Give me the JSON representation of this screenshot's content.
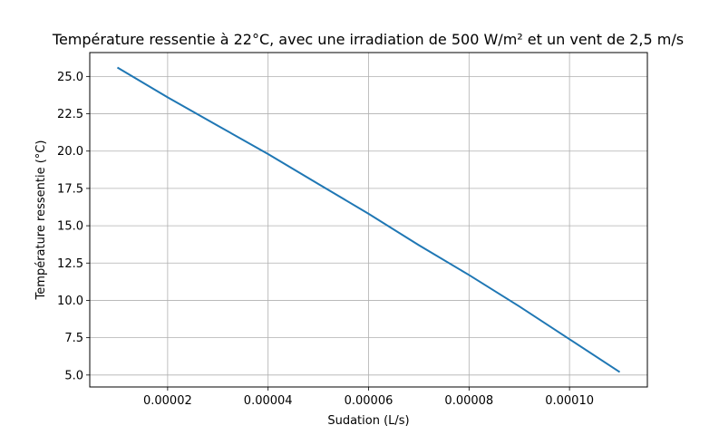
{
  "chart_data": {
    "type": "line",
    "title": "Température ressentie à 22°C, avec une irradiation de 500 W/m² et un vent de 2,5 m/s",
    "xlabel": "Sudation (L/s)",
    "ylabel": "Température ressentie (°C)",
    "xlim": [
      4.5e-06,
      0.0001155
    ],
    "ylim": [
      4.2,
      26.6
    ],
    "grid": true,
    "x_ticks": [
      2e-05,
      4e-05,
      6e-05,
      8e-05,
      0.0001
    ],
    "x_tick_labels": [
      "0.00002",
      "0.00004",
      "0.00006",
      "0.00008",
      "0.00010"
    ],
    "y_ticks": [
      5.0,
      7.5,
      10.0,
      12.5,
      15.0,
      17.5,
      20.0,
      22.5,
      25.0
    ],
    "y_tick_labels": [
      "5.0",
      "7.5",
      "10.0",
      "12.5",
      "15.0",
      "17.5",
      "20.0",
      "22.5",
      "25.0"
    ],
    "series": [
      {
        "color": "#1f77b4",
        "x": [
          1e-05,
          2e-05,
          3e-05,
          4e-05,
          5e-05,
          6e-05,
          7e-05,
          8e-05,
          9e-05,
          0.0001,
          0.00011
        ],
        "y": [
          25.6,
          23.6,
          21.7,
          19.8,
          17.8,
          15.8,
          13.7,
          11.7,
          9.6,
          7.4,
          5.2
        ]
      }
    ]
  }
}
